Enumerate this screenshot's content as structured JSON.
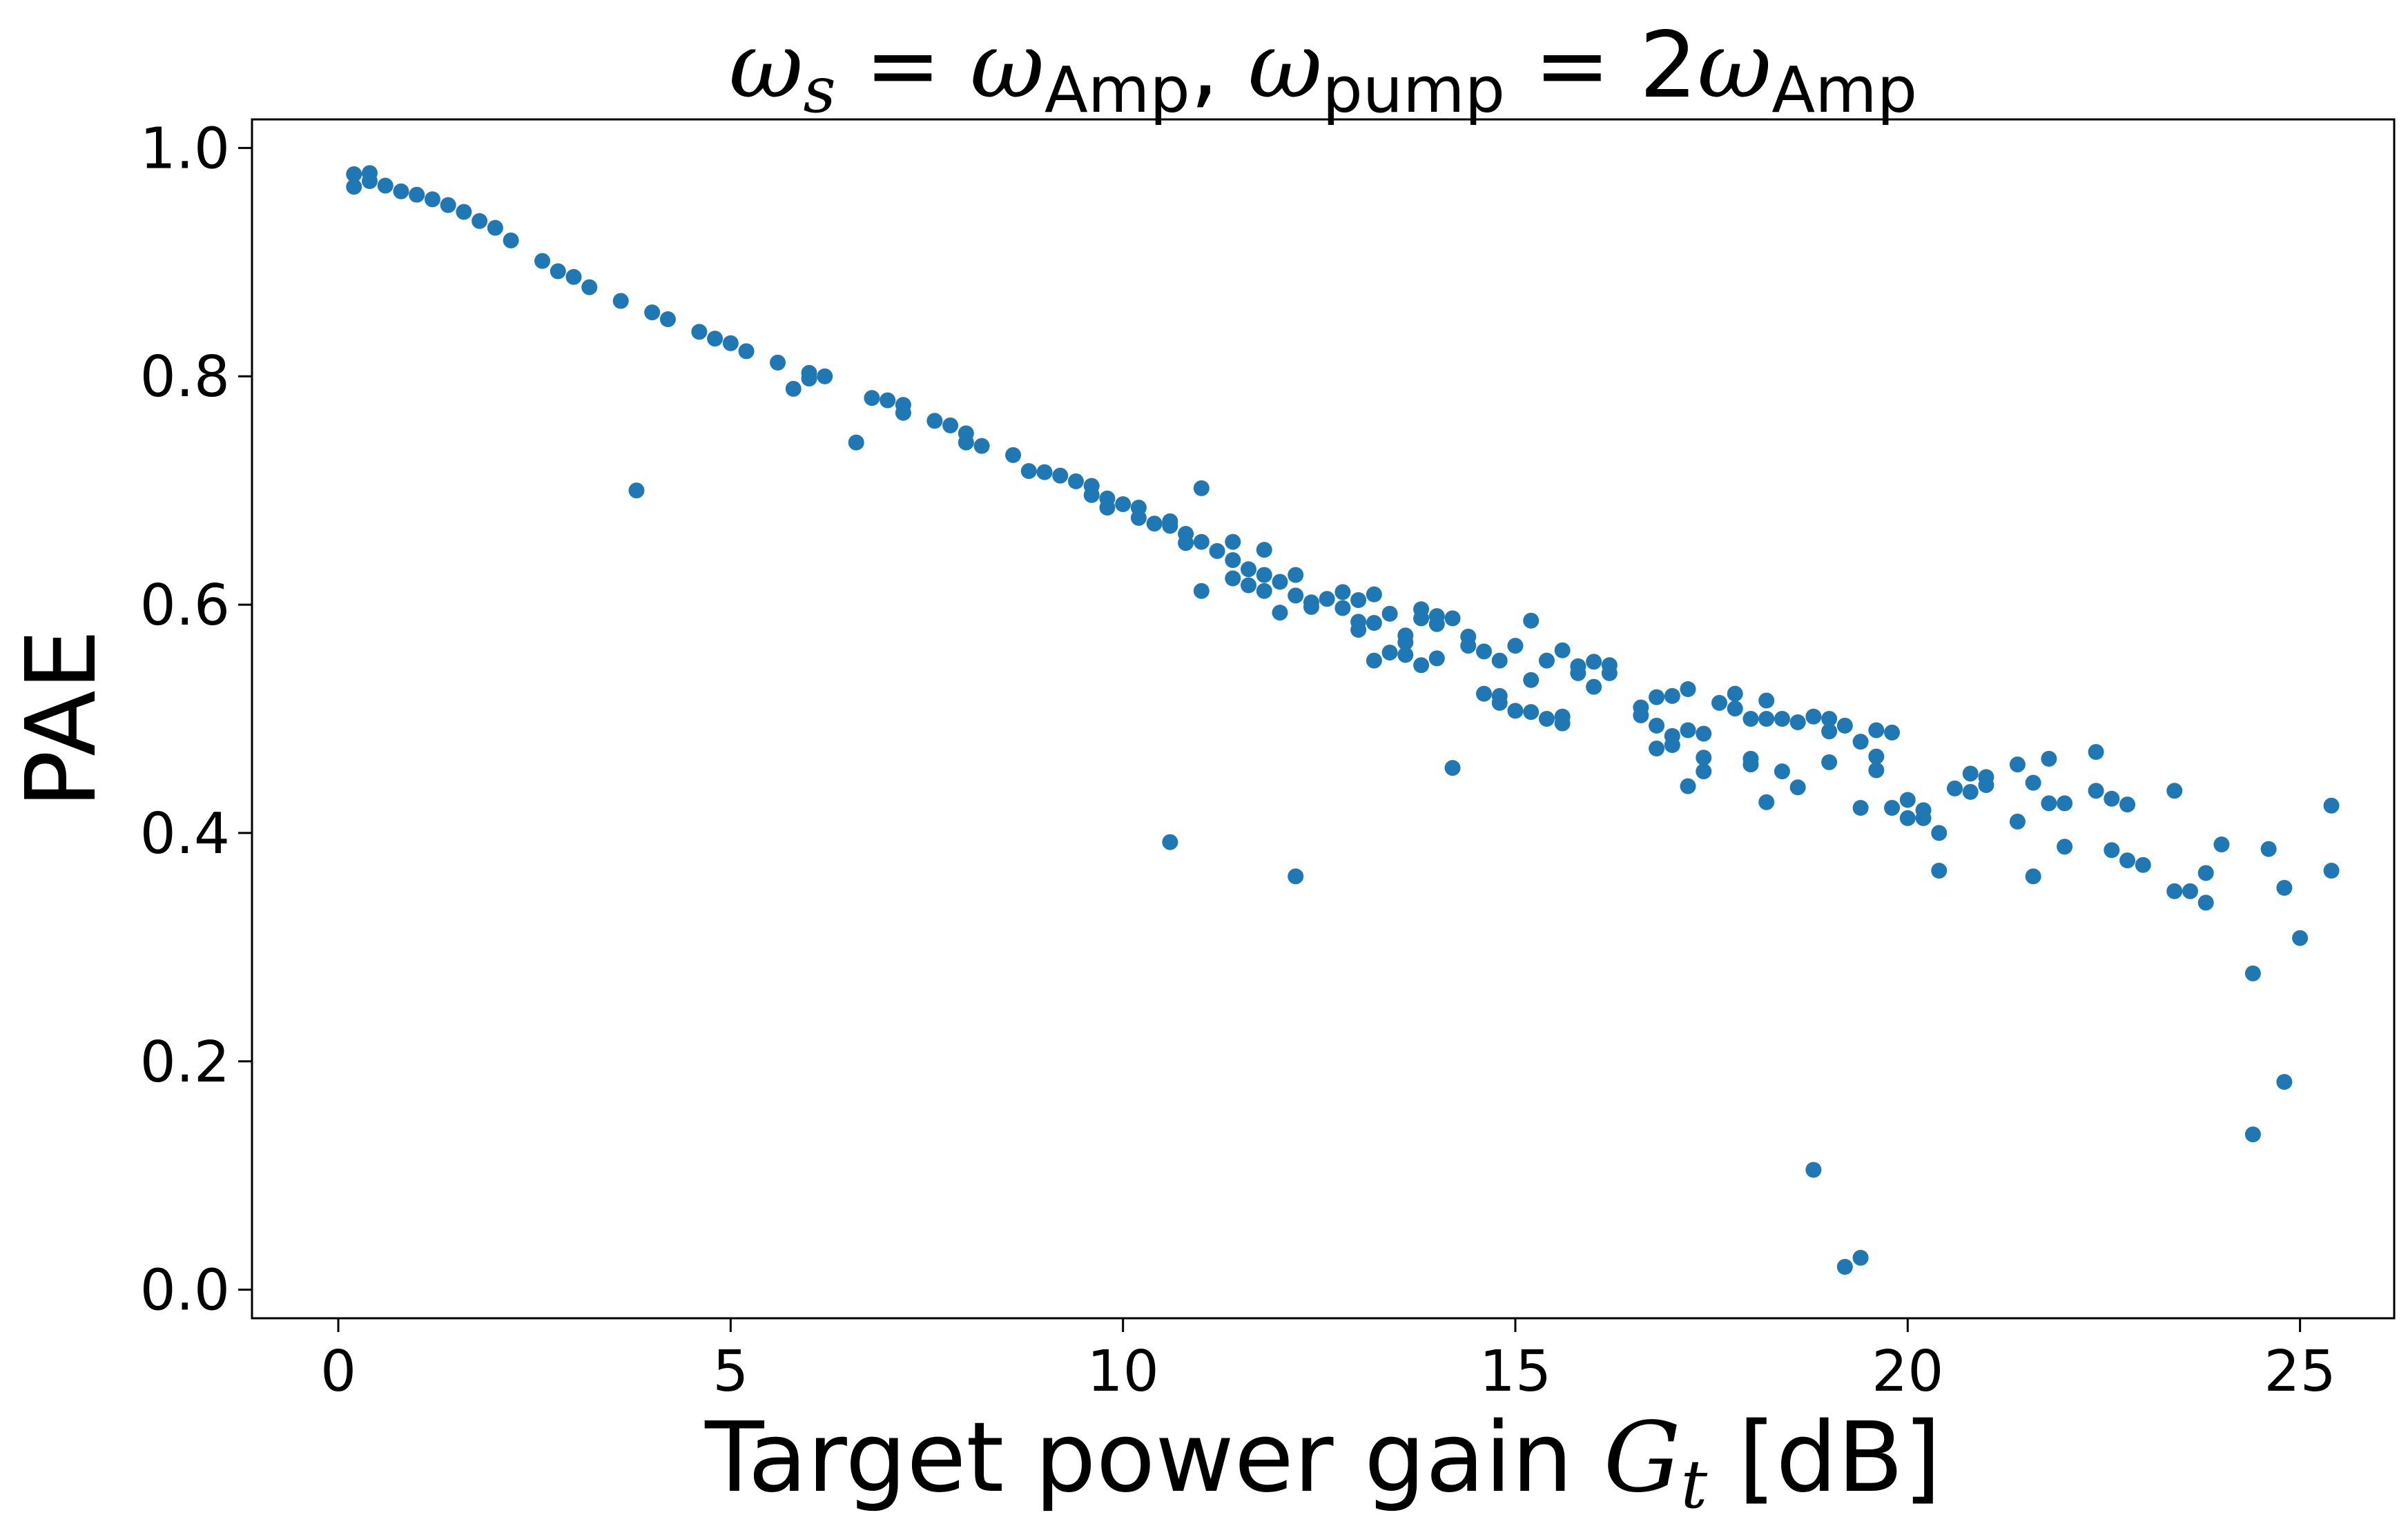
{
  "chart_data": {
    "type": "scatter",
    "title": {
      "parts": [
        {
          "text": "ω",
          "style": "italic"
        },
        {
          "text": "s",
          "style": "italic-sub"
        },
        {
          "text": " = ",
          "style": "normal"
        },
        {
          "text": "ω",
          "style": "italic"
        },
        {
          "text": "Amp",
          "style": "sub"
        },
        {
          "text": ", ",
          "style": "normal"
        },
        {
          "text": "ω",
          "style": "italic"
        },
        {
          "text": "pump",
          "style": "sub"
        },
        {
          "text": " = 2",
          "style": "normal"
        },
        {
          "text": "ω",
          "style": "italic"
        },
        {
          "text": "Amp",
          "style": "sub"
        }
      ]
    },
    "xlabel": {
      "prefix": "Target power gain ",
      "var": "G",
      "sub": "t",
      "suffix": " [dB]"
    },
    "ylabel": "PAE",
    "xlim": [
      -1.1,
      26.2
    ],
    "ylim": [
      -0.025,
      1.025
    ],
    "xticks": [
      0,
      5,
      10,
      15,
      20,
      25
    ],
    "xtick_labels": [
      "0",
      "5",
      "10",
      "15",
      "20",
      "25"
    ],
    "yticks": [
      0.0,
      0.2,
      0.4,
      0.6,
      0.8,
      1.0
    ],
    "ytick_labels": [
      "0.0",
      "0.2",
      "0.4",
      "0.6",
      "0.8",
      "1.0"
    ],
    "grid": false,
    "color": "#1f77b4",
    "points": [
      [
        0.2,
        0.977
      ],
      [
        0.2,
        0.966
      ],
      [
        0.4,
        0.978
      ],
      [
        0.4,
        0.971
      ],
      [
        0.6,
        0.967
      ],
      [
        0.8,
        0.962
      ],
      [
        1.0,
        0.959
      ],
      [
        1.2,
        0.955
      ],
      [
        1.4,
        0.95
      ],
      [
        1.6,
        0.944
      ],
      [
        1.8,
        0.936
      ],
      [
        2.0,
        0.93
      ],
      [
        2.2,
        0.919
      ],
      [
        2.6,
        0.901
      ],
      [
        2.8,
        0.892
      ],
      [
        3.0,
        0.887
      ],
      [
        3.2,
        0.878
      ],
      [
        3.6,
        0.866
      ],
      [
        3.8,
        0.7
      ],
      [
        4.0,
        0.856
      ],
      [
        4.2,
        0.85
      ],
      [
        4.6,
        0.839
      ],
      [
        4.8,
        0.833
      ],
      [
        5.0,
        0.829
      ],
      [
        5.2,
        0.822
      ],
      [
        5.6,
        0.812
      ],
      [
        5.8,
        0.789
      ],
      [
        6.0,
        0.803
      ],
      [
        6.0,
        0.798
      ],
      [
        6.2,
        0.8
      ],
      [
        6.6,
        0.742
      ],
      [
        6.8,
        0.781
      ],
      [
        7.0,
        0.779
      ],
      [
        7.2,
        0.775
      ],
      [
        7.2,
        0.768
      ],
      [
        7.6,
        0.761
      ],
      [
        7.8,
        0.757
      ],
      [
        8.0,
        0.75
      ],
      [
        8.0,
        0.742
      ],
      [
        8.2,
        0.739
      ],
      [
        8.6,
        0.731
      ],
      [
        8.8,
        0.717
      ],
      [
        9.0,
        0.716
      ],
      [
        9.2,
        0.713
      ],
      [
        9.4,
        0.708
      ],
      [
        9.6,
        0.704
      ],
      [
        9.6,
        0.696
      ],
      [
        9.8,
        0.693
      ],
      [
        9.8,
        0.685
      ],
      [
        10.0,
        0.688
      ],
      [
        10.2,
        0.685
      ],
      [
        10.2,
        0.676
      ],
      [
        10.4,
        0.671
      ],
      [
        10.6,
        0.673
      ],
      [
        10.6,
        0.669
      ],
      [
        10.6,
        0.392
      ],
      [
        10.8,
        0.662
      ],
      [
        10.8,
        0.654
      ],
      [
        11.0,
        0.702
      ],
      [
        11.0,
        0.655
      ],
      [
        11.0,
        0.612
      ],
      [
        11.2,
        0.647
      ],
      [
        11.4,
        0.655
      ],
      [
        11.4,
        0.639
      ],
      [
        11.4,
        0.623
      ],
      [
        11.6,
        0.631
      ],
      [
        11.6,
        0.617
      ],
      [
        11.8,
        0.648
      ],
      [
        11.8,
        0.626
      ],
      [
        11.8,
        0.612
      ],
      [
        12.0,
        0.62
      ],
      [
        12.0,
        0.593
      ],
      [
        12.2,
        0.626
      ],
      [
        12.2,
        0.608
      ],
      [
        12.2,
        0.362
      ],
      [
        12.4,
        0.602
      ],
      [
        12.4,
        0.598
      ],
      [
        12.6,
        0.605
      ],
      [
        12.8,
        0.611
      ],
      [
        12.8,
        0.597
      ],
      [
        13.0,
        0.604
      ],
      [
        13.0,
        0.585
      ],
      [
        13.0,
        0.578
      ],
      [
        13.2,
        0.609
      ],
      [
        13.2,
        0.584
      ],
      [
        13.2,
        0.551
      ],
      [
        13.4,
        0.592
      ],
      [
        13.4,
        0.558
      ],
      [
        13.6,
        0.573
      ],
      [
        13.6,
        0.567
      ],
      [
        13.6,
        0.556
      ],
      [
        13.8,
        0.596
      ],
      [
        13.8,
        0.588
      ],
      [
        13.8,
        0.547
      ],
      [
        14.0,
        0.59
      ],
      [
        14.0,
        0.583
      ],
      [
        14.0,
        0.553
      ],
      [
        14.2,
        0.588
      ],
      [
        14.2,
        0.457
      ],
      [
        14.4,
        0.572
      ],
      [
        14.4,
        0.564
      ],
      [
        14.6,
        0.559
      ],
      [
        14.6,
        0.522
      ],
      [
        14.8,
        0.551
      ],
      [
        14.8,
        0.514
      ],
      [
        14.8,
        0.52
      ],
      [
        15.0,
        0.564
      ],
      [
        15.0,
        0.507
      ],
      [
        15.2,
        0.586
      ],
      [
        15.2,
        0.534
      ],
      [
        15.2,
        0.506
      ],
      [
        15.4,
        0.551
      ],
      [
        15.4,
        0.5
      ],
      [
        15.6,
        0.56
      ],
      [
        15.6,
        0.502
      ],
      [
        15.6,
        0.496
      ],
      [
        15.8,
        0.546
      ],
      [
        15.8,
        0.54
      ],
      [
        16.0,
        0.55
      ],
      [
        16.0,
        0.528
      ],
      [
        16.2,
        0.547
      ],
      [
        16.2,
        0.54
      ],
      [
        16.6,
        0.51
      ],
      [
        16.6,
        0.503
      ],
      [
        16.8,
        0.519
      ],
      [
        16.8,
        0.494
      ],
      [
        16.8,
        0.474
      ],
      [
        17.0,
        0.52
      ],
      [
        17.0,
        0.485
      ],
      [
        17.0,
        0.477
      ],
      [
        17.2,
        0.526
      ],
      [
        17.2,
        0.49
      ],
      [
        17.2,
        0.441
      ],
      [
        17.4,
        0.487
      ],
      [
        17.4,
        0.466
      ],
      [
        17.4,
        0.454
      ],
      [
        17.6,
        0.514
      ],
      [
        17.8,
        0.522
      ],
      [
        17.8,
        0.509
      ],
      [
        18.0,
        0.5
      ],
      [
        18.0,
        0.465
      ],
      [
        18.0,
        0.46
      ],
      [
        18.2,
        0.516
      ],
      [
        18.2,
        0.5
      ],
      [
        18.2,
        0.427
      ],
      [
        18.4,
        0.5
      ],
      [
        18.4,
        0.454
      ],
      [
        18.6,
        0.497
      ],
      [
        18.6,
        0.44
      ],
      [
        18.8,
        0.502
      ],
      [
        18.8,
        0.105
      ],
      [
        19.0,
        0.5
      ],
      [
        19.0,
        0.489
      ],
      [
        19.0,
        0.462
      ],
      [
        19.2,
        0.494
      ],
      [
        19.2,
        0.02
      ],
      [
        19.4,
        0.028
      ],
      [
        19.4,
        0.422
      ],
      [
        19.4,
        0.48
      ],
      [
        19.6,
        0.49
      ],
      [
        19.6,
        0.467
      ],
      [
        19.6,
        0.455
      ],
      [
        19.8,
        0.488
      ],
      [
        19.8,
        0.422
      ],
      [
        20.0,
        0.429
      ],
      [
        20.0,
        0.413
      ],
      [
        20.2,
        0.42
      ],
      [
        20.2,
        0.413
      ],
      [
        20.4,
        0.4
      ],
      [
        20.4,
        0.367
      ],
      [
        20.6,
        0.439
      ],
      [
        20.8,
        0.452
      ],
      [
        20.8,
        0.436
      ],
      [
        21.0,
        0.449
      ],
      [
        21.0,
        0.442
      ],
      [
        21.4,
        0.46
      ],
      [
        21.4,
        0.41
      ],
      [
        21.6,
        0.444
      ],
      [
        21.6,
        0.362
      ],
      [
        21.8,
        0.465
      ],
      [
        21.8,
        0.426
      ],
      [
        22.0,
        0.426
      ],
      [
        22.0,
        0.388
      ],
      [
        22.4,
        0.471
      ],
      [
        22.4,
        0.437
      ],
      [
        22.6,
        0.43
      ],
      [
        22.6,
        0.385
      ],
      [
        22.8,
        0.425
      ],
      [
        22.8,
        0.376
      ],
      [
        23.0,
        0.372
      ],
      [
        23.4,
        0.437
      ],
      [
        23.4,
        0.349
      ],
      [
        23.6,
        0.349
      ],
      [
        23.8,
        0.365
      ],
      [
        23.8,
        0.339
      ],
      [
        24.0,
        0.39
      ],
      [
        24.4,
        0.277
      ],
      [
        24.4,
        0.136
      ],
      [
        24.6,
        0.386
      ],
      [
        24.8,
        0.352
      ],
      [
        24.8,
        0.182
      ],
      [
        25.0,
        0.308
      ],
      [
        25.4,
        0.424
      ],
      [
        25.4,
        0.367
      ]
    ]
  }
}
